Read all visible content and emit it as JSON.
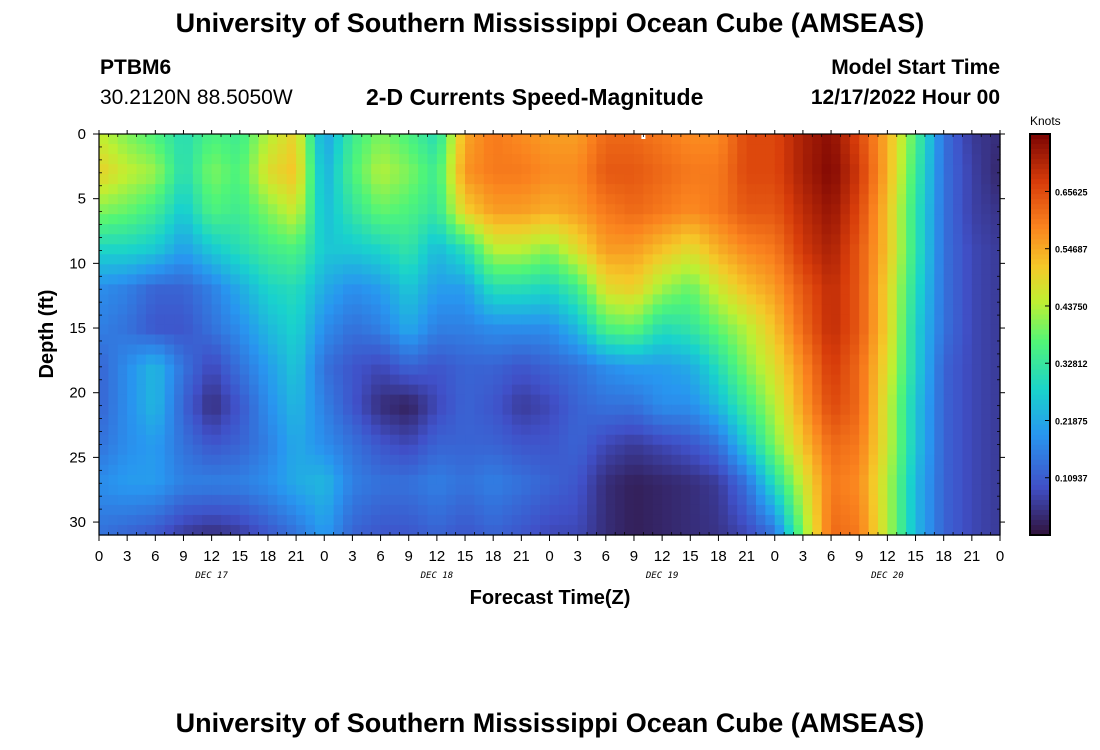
{
  "header": {
    "title": "University of Southern Mississippi Ocean Cube (AMSEAS)",
    "station": "PTBM6",
    "coords": "30.2120N  88.5050W",
    "subtitle": "2-D Currents Speed-Magnitude",
    "start_label": "Model Start Time",
    "start_value": "12/17/2022 Hour 00"
  },
  "footer": {
    "title": "University of Southern Mississippi Ocean Cube (AMSEAS)"
  },
  "chart_data": {
    "type": "heatmap",
    "title": "2-D Currents Speed-Magnitude",
    "xlabel": "Forecast Time(Z)",
    "ylabel": "Depth (ft)",
    "x_ticks": [
      "0",
      "3",
      "6",
      "9",
      "12",
      "15",
      "18",
      "21",
      "0",
      "3",
      "6",
      "9",
      "12",
      "15",
      "18",
      "21",
      "0",
      "3",
      "6",
      "9",
      "12",
      "15",
      "18",
      "21",
      "0",
      "3",
      "6",
      "9",
      "12",
      "15",
      "18",
      "21",
      "0"
    ],
    "x_day_labels": [
      "DEC 17",
      "DEC 18",
      "DEC 19",
      "DEC 20"
    ],
    "x_range_hours": [
      0,
      96
    ],
    "y_ticks": [
      "0",
      "5",
      "10",
      "15",
      "20",
      "25",
      "30"
    ],
    "y_range_ft": [
      0,
      31
    ],
    "colorbar": {
      "label": "Knots",
      "ticks": [
        "0.65625",
        "0.54687",
        "0.43750",
        "0.32812",
        "0.21875",
        "0.10937"
      ],
      "range": [
        0,
        0.766
      ]
    },
    "grid": false,
    "field": {
      "x_hours": [
        0,
        3,
        6,
        9,
        12,
        15,
        18,
        21,
        24,
        27,
        30,
        33,
        36,
        39,
        42,
        45,
        48,
        51,
        54,
        57,
        60,
        63,
        66,
        69,
        72,
        75,
        78,
        81,
        84,
        87,
        90,
        93,
        96
      ],
      "depth_ft": [
        0,
        3,
        6,
        9,
        12,
        15,
        18,
        21,
        24,
        27,
        31
      ],
      "values_knots": [
        [
          0.45,
          0.4,
          0.36,
          0.3,
          0.36,
          0.34,
          0.44,
          0.5,
          0.2,
          0.34,
          0.4,
          0.36,
          0.3,
          0.55,
          0.6,
          0.58,
          0.56,
          0.56,
          0.62,
          0.62,
          0.6,
          0.58,
          0.58,
          0.66,
          0.66,
          0.72,
          0.75,
          0.66,
          0.54,
          0.36,
          0.14,
          0.06,
          0.04
        ],
        [
          0.5,
          0.45,
          0.42,
          0.3,
          0.4,
          0.36,
          0.48,
          0.52,
          0.22,
          0.36,
          0.44,
          0.4,
          0.34,
          0.57,
          0.6,
          0.6,
          0.58,
          0.58,
          0.64,
          0.64,
          0.62,
          0.6,
          0.6,
          0.66,
          0.66,
          0.72,
          0.76,
          0.68,
          0.54,
          0.34,
          0.14,
          0.07,
          0.03
        ],
        [
          0.4,
          0.38,
          0.34,
          0.26,
          0.36,
          0.34,
          0.4,
          0.46,
          0.24,
          0.32,
          0.38,
          0.36,
          0.32,
          0.5,
          0.56,
          0.56,
          0.54,
          0.56,
          0.6,
          0.62,
          0.6,
          0.58,
          0.6,
          0.64,
          0.64,
          0.7,
          0.74,
          0.66,
          0.52,
          0.32,
          0.14,
          0.07,
          0.05
        ],
        [
          0.28,
          0.28,
          0.26,
          0.2,
          0.26,
          0.3,
          0.34,
          0.36,
          0.26,
          0.26,
          0.28,
          0.32,
          0.24,
          0.3,
          0.44,
          0.44,
          0.4,
          0.48,
          0.56,
          0.56,
          0.52,
          0.48,
          0.54,
          0.58,
          0.6,
          0.68,
          0.72,
          0.64,
          0.52,
          0.32,
          0.14,
          0.08,
          0.06
        ],
        [
          0.18,
          0.16,
          0.12,
          0.12,
          0.16,
          0.22,
          0.28,
          0.3,
          0.22,
          0.18,
          0.2,
          0.26,
          0.2,
          0.2,
          0.3,
          0.3,
          0.28,
          0.34,
          0.48,
          0.5,
          0.42,
          0.38,
          0.46,
          0.52,
          0.56,
          0.64,
          0.7,
          0.64,
          0.5,
          0.3,
          0.14,
          0.08,
          0.06
        ],
        [
          0.16,
          0.14,
          0.1,
          0.1,
          0.14,
          0.18,
          0.24,
          0.28,
          0.18,
          0.14,
          0.16,
          0.22,
          0.16,
          0.16,
          0.18,
          0.18,
          0.18,
          0.24,
          0.36,
          0.38,
          0.3,
          0.32,
          0.38,
          0.44,
          0.52,
          0.62,
          0.7,
          0.64,
          0.5,
          0.28,
          0.14,
          0.08,
          0.06
        ],
        [
          0.12,
          0.18,
          0.24,
          0.14,
          0.08,
          0.14,
          0.2,
          0.26,
          0.14,
          0.1,
          0.08,
          0.12,
          0.1,
          0.12,
          0.12,
          0.1,
          0.12,
          0.14,
          0.18,
          0.2,
          0.2,
          0.22,
          0.3,
          0.4,
          0.48,
          0.58,
          0.68,
          0.62,
          0.48,
          0.28,
          0.12,
          0.08,
          0.06
        ],
        [
          0.12,
          0.18,
          0.24,
          0.12,
          0.04,
          0.1,
          0.18,
          0.24,
          0.16,
          0.1,
          0.04,
          0.02,
          0.08,
          0.12,
          0.1,
          0.06,
          0.08,
          0.12,
          0.14,
          0.14,
          0.18,
          0.18,
          0.24,
          0.34,
          0.44,
          0.56,
          0.66,
          0.62,
          0.46,
          0.26,
          0.12,
          0.08,
          0.06
        ],
        [
          0.14,
          0.18,
          0.2,
          0.14,
          0.1,
          0.12,
          0.16,
          0.22,
          0.18,
          0.14,
          0.1,
          0.08,
          0.12,
          0.12,
          0.12,
          0.1,
          0.1,
          0.12,
          0.08,
          0.06,
          0.08,
          0.1,
          0.14,
          0.26,
          0.4,
          0.52,
          0.62,
          0.6,
          0.46,
          0.26,
          0.12,
          0.08,
          0.06
        ],
        [
          0.18,
          0.2,
          0.2,
          0.16,
          0.16,
          0.16,
          0.18,
          0.22,
          0.24,
          0.16,
          0.14,
          0.14,
          0.16,
          0.14,
          0.16,
          0.14,
          0.12,
          0.1,
          0.04,
          0.02,
          0.03,
          0.04,
          0.06,
          0.14,
          0.3,
          0.46,
          0.6,
          0.58,
          0.44,
          0.24,
          0.12,
          0.08,
          0.06
        ],
        [
          0.14,
          0.12,
          0.1,
          0.06,
          0.04,
          0.06,
          0.1,
          0.14,
          0.2,
          0.12,
          0.1,
          0.1,
          0.12,
          0.1,
          0.12,
          0.1,
          0.08,
          0.08,
          0.04,
          0.02,
          0.03,
          0.04,
          0.05,
          0.08,
          0.14,
          0.4,
          0.62,
          0.6,
          0.44,
          0.24,
          0.12,
          0.08,
          0.06
        ]
      ]
    },
    "marker": {
      "x_hours": 58,
      "depth_ft": 0
    }
  }
}
